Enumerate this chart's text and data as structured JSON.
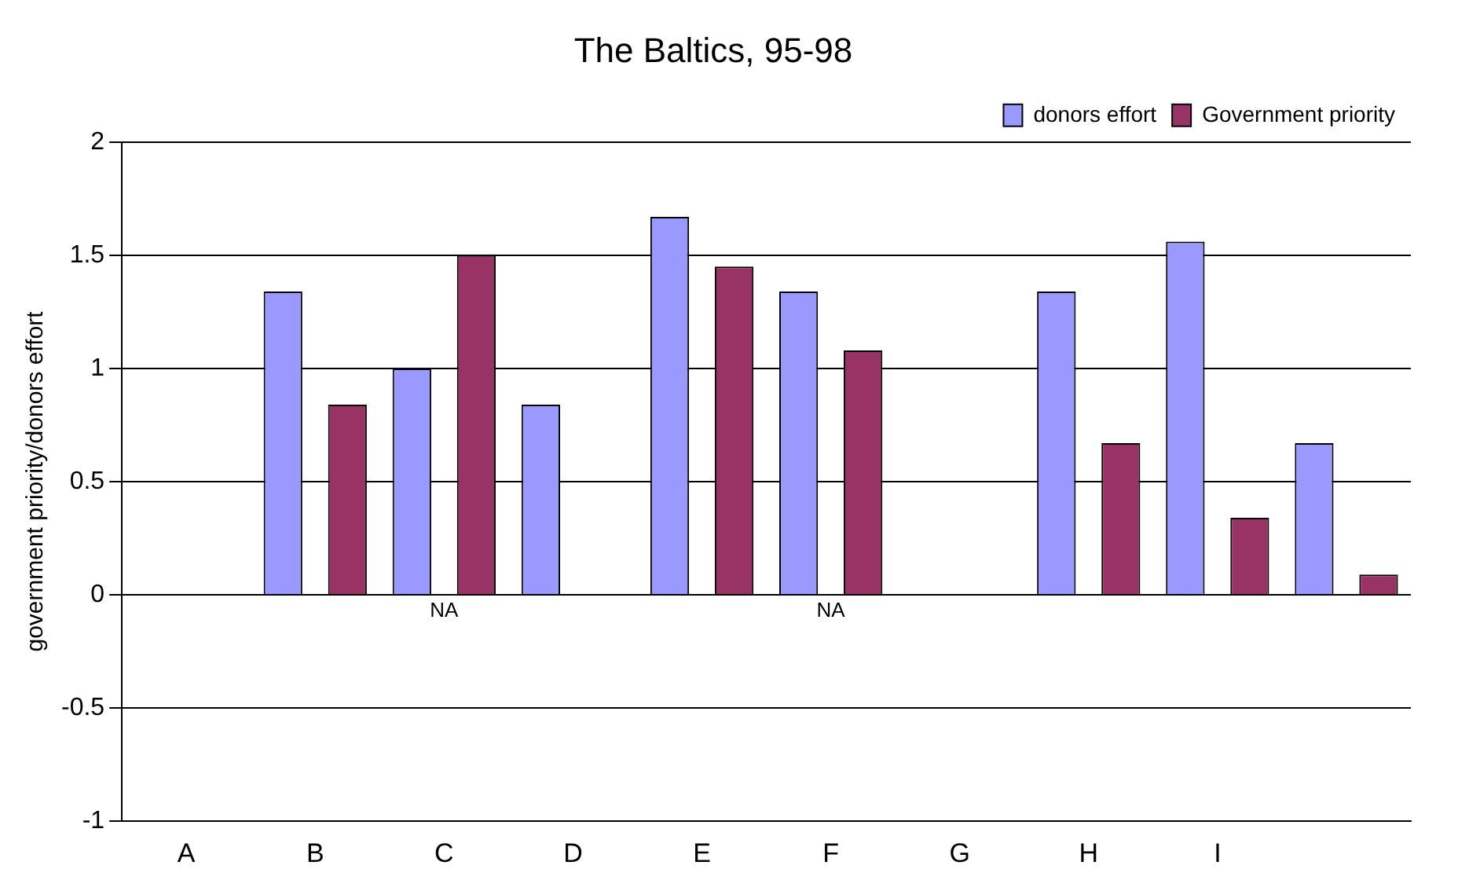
{
  "chart_data": {
    "type": "bar",
    "title": "The Baltics, 95-98",
    "ylabel": "government priority/donors effort",
    "categories": [
      "A",
      "B",
      "C",
      "D",
      "E",
      "F",
      "G",
      "H",
      "I",
      null
    ],
    "series": [
      {
        "name": "donors effort",
        "color": "#9999ff",
        "values": [
          null,
          1.34,
          1.0,
          0.84,
          1.67,
          1.34,
          null,
          1.34,
          1.56,
          0.67
        ]
      },
      {
        "name": "Government priority",
        "color": "#993366",
        "values": [
          null,
          0.84,
          1.5,
          null,
          1.45,
          1.08,
          null,
          0.67,
          0.34,
          0.09
        ]
      }
    ],
    "annotations": [
      "NA",
      "NA"
    ],
    "ylim": [
      -1,
      2
    ],
    "yticks": [
      -1,
      -0.5,
      0,
      0.5,
      1,
      1.5,
      2
    ],
    "grid": "y",
    "legend": "top right"
  }
}
